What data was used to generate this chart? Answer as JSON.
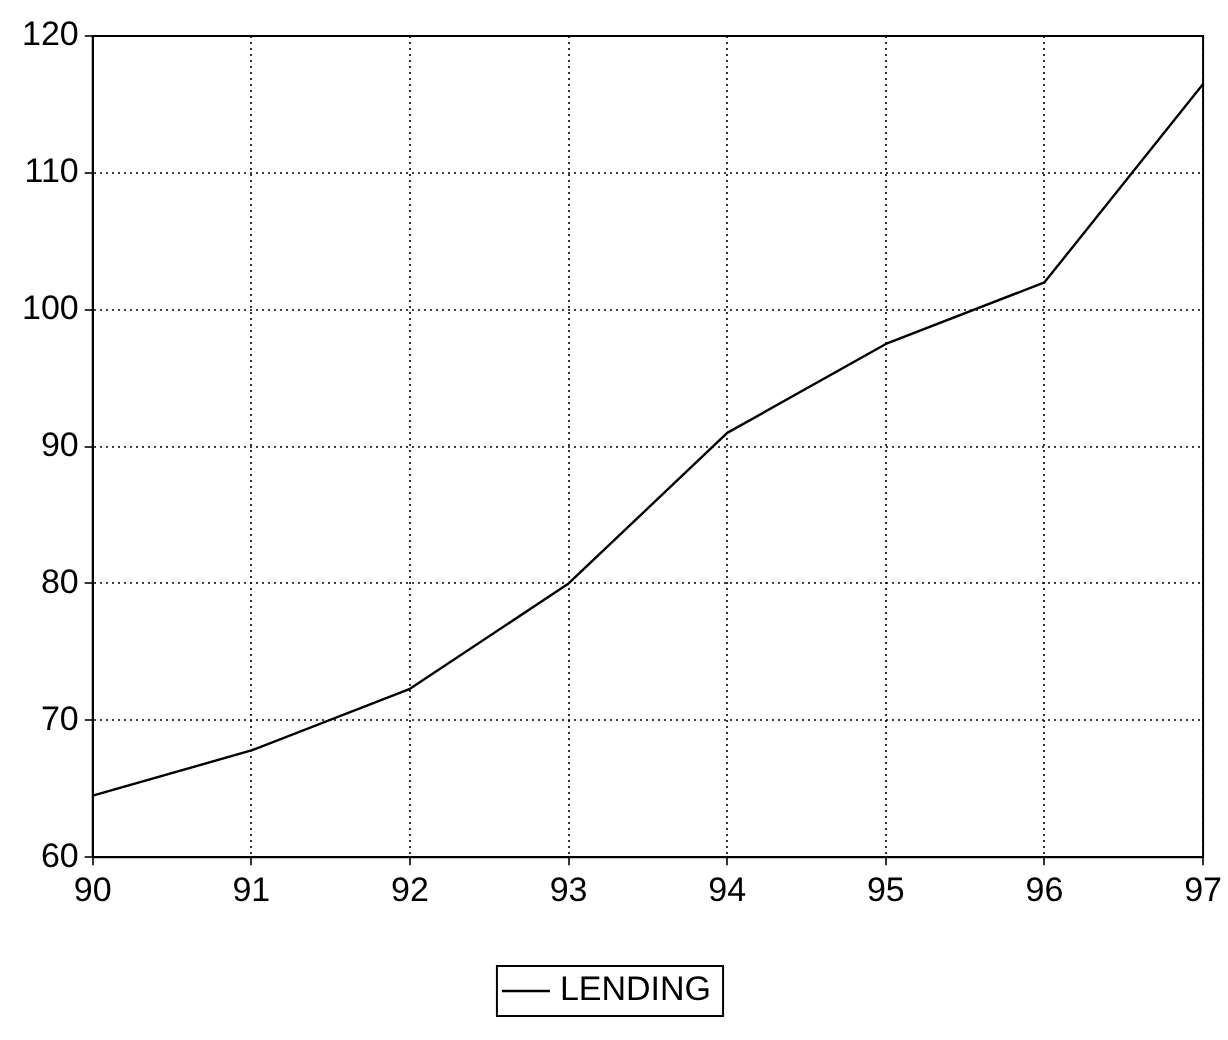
{
  "chart_data": {
    "type": "line",
    "x": [
      90,
      91,
      92,
      93,
      94,
      95,
      96,
      97
    ],
    "series": [
      {
        "name": "LENDING",
        "color": "#000000",
        "values": [
          64.5,
          67.8,
          72.3,
          80.0,
          91.0,
          97.5,
          102.0,
          116.5
        ]
      }
    ],
    "xlim": [
      90,
      97
    ],
    "xticks": [
      90,
      91,
      92,
      93,
      94,
      95,
      96,
      97
    ],
    "ylim": [
      60,
      120
    ],
    "yticks": [
      60,
      70,
      80,
      90,
      100,
      110,
      120
    ],
    "grid": true,
    "legend": "bottom",
    "marker": "none",
    "line_style": "solid"
  }
}
